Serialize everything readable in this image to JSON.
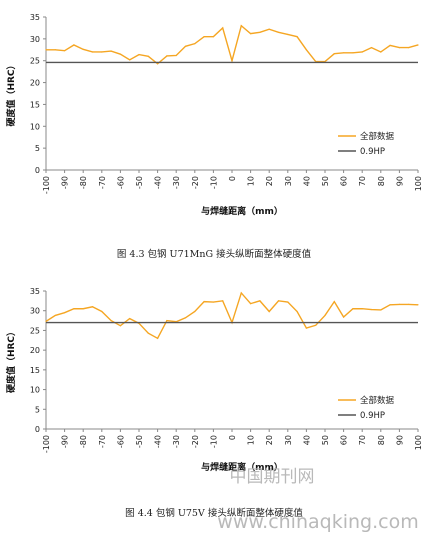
{
  "chart_data": [
    {
      "type": "line",
      "caption": "图 4.3  包钢 U71MnG 接头纵断面整体硬度值",
      "xlabel": "与焊缝距离（mm）",
      "ylabel": "硬度值（HRC）",
      "x": [
        -100,
        -95,
        -90,
        -85,
        -80,
        -75,
        -70,
        -65,
        -60,
        -55,
        -50,
        -45,
        -40,
        -35,
        -30,
        -25,
        -20,
        -15,
        -10,
        -5,
        0,
        5,
        10,
        15,
        20,
        25,
        30,
        35,
        40,
        45,
        50,
        55,
        60,
        65,
        70,
        75,
        80,
        85,
        90,
        95,
        100
      ],
      "xticks": [
        -100,
        -90,
        -80,
        -70,
        -60,
        -50,
        -40,
        -30,
        -20,
        -10,
        0,
        10,
        20,
        30,
        40,
        50,
        60,
        70,
        80,
        90,
        100
      ],
      "ylim": [
        0,
        35
      ],
      "yticks": [
        0,
        5,
        10,
        15,
        20,
        25,
        30,
        35
      ],
      "series": [
        {
          "name": "全部数据",
          "color": "#f5a623",
          "values": [
            27.5,
            27.5,
            27.3,
            28.6,
            27.6,
            27.0,
            27.0,
            27.2,
            26.5,
            25.2,
            26.4,
            26.0,
            24.3,
            26.1,
            26.2,
            28.3,
            28.9,
            30.5,
            30.5,
            32.5,
            25.0,
            33.0,
            31.2,
            31.5,
            32.2,
            31.5,
            31.0,
            30.5,
            27.5,
            24.8,
            24.8,
            26.6,
            26.8,
            26.8,
            27.0,
            28.0,
            27.0,
            28.5,
            28.0,
            28.0,
            28.6
          ]
        },
        {
          "name": "0.9HP",
          "color": "#555555",
          "values": [
            24.6,
            24.6,
            24.6,
            24.6,
            24.6,
            24.6,
            24.6,
            24.6,
            24.6,
            24.6,
            24.6,
            24.6,
            24.6,
            24.6,
            24.6,
            24.6,
            24.6,
            24.6,
            24.6,
            24.6,
            24.6,
            24.6,
            24.6,
            24.6,
            24.6,
            24.6,
            24.6,
            24.6,
            24.6,
            24.6,
            24.6,
            24.6,
            24.6,
            24.6,
            24.6,
            24.6,
            24.6,
            24.6,
            24.6,
            24.6,
            24.6
          ]
        }
      ]
    },
    {
      "type": "line",
      "caption": "图 4.4  包钢 U75V 接头纵断面整体硬度值",
      "xlabel": "与焊缝距离（mm）",
      "ylabel": "硬度值（HRC）",
      "x": [
        -100,
        -95,
        -90,
        -85,
        -80,
        -75,
        -70,
        -65,
        -60,
        -55,
        -50,
        -45,
        -40,
        -35,
        -30,
        -25,
        -20,
        -15,
        -10,
        -5,
        0,
        5,
        10,
        15,
        20,
        25,
        30,
        35,
        40,
        45,
        50,
        55,
        60,
        65,
        70,
        75,
        80,
        85,
        90,
        95,
        100
      ],
      "xticks": [
        -100,
        -90,
        -80,
        -70,
        -60,
        -50,
        -40,
        -30,
        -20,
        -10,
        0,
        10,
        20,
        30,
        40,
        50,
        60,
        70,
        80,
        90,
        100
      ],
      "ylim": [
        0,
        35
      ],
      "yticks": [
        0,
        5,
        10,
        15,
        20,
        25,
        30,
        35
      ],
      "series": [
        {
          "name": "全部数据",
          "color": "#f5a623",
          "values": [
            27.3,
            28.8,
            29.5,
            30.5,
            30.5,
            31.0,
            29.8,
            27.5,
            26.2,
            28.0,
            26.8,
            24.3,
            23.0,
            27.5,
            27.2,
            28.2,
            29.8,
            32.3,
            32.2,
            32.5,
            27.0,
            34.5,
            31.8,
            32.5,
            29.8,
            32.5,
            32.2,
            29.8,
            25.6,
            26.3,
            28.8,
            32.3,
            28.4,
            30.5,
            30.5,
            30.3,
            30.2,
            31.5,
            31.6,
            31.6,
            31.5
          ]
        },
        {
          "name": "0.9HP",
          "color": "#555555",
          "values": [
            27.0,
            27.0,
            27.0,
            27.0,
            27.0,
            27.0,
            27.0,
            27.0,
            27.0,
            27.0,
            27.0,
            27.0,
            27.0,
            27.0,
            27.0,
            27.0,
            27.0,
            27.0,
            27.0,
            27.0,
            27.0,
            27.0,
            27.0,
            27.0,
            27.0,
            27.0,
            27.0,
            27.0,
            27.0,
            27.0,
            27.0,
            27.0,
            27.0,
            27.0,
            27.0,
            27.0,
            27.0,
            27.0,
            27.0,
            27.0,
            27.0
          ]
        }
      ]
    }
  ],
  "watermark": {
    "site_cn": "中国期刊网",
    "site_url": "www.chinaqking.com"
  }
}
